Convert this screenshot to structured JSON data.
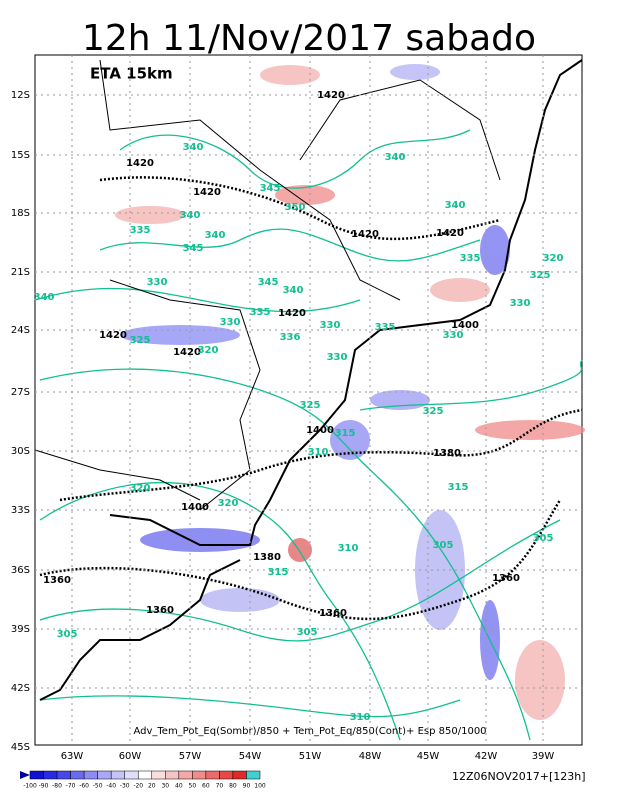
{
  "header": {
    "title": "12h 11/Nov/2017 sabado",
    "model": "ETA 15km"
  },
  "lat_labels": [
    "12S",
    "15S",
    "18S",
    "21S",
    "24S",
    "27S",
    "30S",
    "33S",
    "36S",
    "39S",
    "42S",
    "45S"
  ],
  "lon_labels": [
    "63W",
    "60W",
    "57W",
    "54W",
    "51W",
    "48W",
    "45W",
    "42W",
    "39W"
  ],
  "contour_labels": [
    "1420",
    "340",
    "1420",
    "1420",
    "345",
    "350",
    "340",
    "335",
    "345",
    "340",
    "1420",
    "340",
    "1420",
    "335",
    "320",
    "325",
    "330",
    "330",
    "345",
    "340",
    "1420",
    "330",
    "335",
    "1400",
    "335",
    "330",
    "1420",
    "325",
    "1420",
    "320",
    "336",
    "330",
    "330",
    "325",
    "325",
    "1400",
    "315",
    "310",
    "1380",
    "315",
    "320",
    "1400",
    "320",
    "305",
    "305",
    "310",
    "1380",
    "315",
    "1360",
    "1360",
    "1360",
    "1360",
    "305",
    "305",
    "310",
    "340",
    "340"
  ],
  "caption": "Adv_Tem_Pot_Eq(Sombr)/850 + Tem_Pot_Eq/850(Cont)+ Esp 850/1000",
  "colorbar": {
    "labels": [
      -100,
      -90,
      -80,
      -70,
      -60,
      -50,
      -40,
      -30,
      -20,
      20,
      30,
      40,
      50,
      60,
      70,
      80,
      90,
      100
    ]
  },
  "timestamp": "12Z06NOV2017+[123h]"
}
